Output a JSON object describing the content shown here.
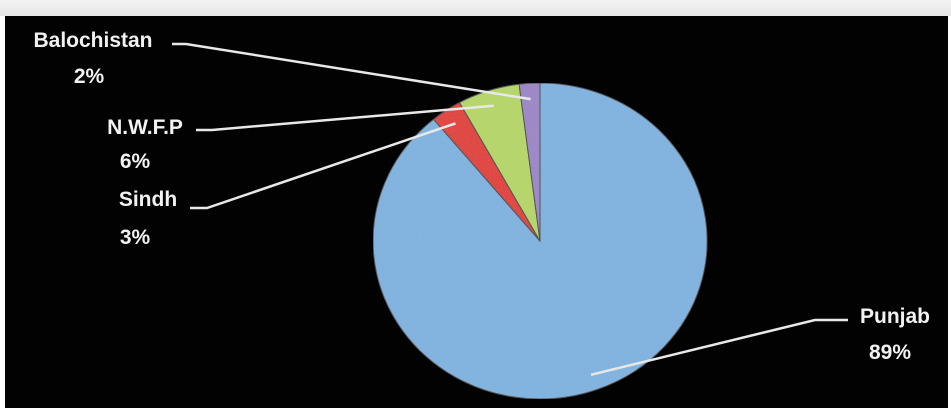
{
  "chart_data": {
    "type": "pie",
    "title": "",
    "slices": [
      {
        "label": "Punjab",
        "value": 89,
        "pct_label": "89%",
        "color": "#7fb3e1"
      },
      {
        "label": "Sindh",
        "value": 3,
        "pct_label": "3%",
        "color": "#e23a36"
      },
      {
        "label": "N.W.F.P",
        "value": 6,
        "pct_label": "6%",
        "color": "#b6d766"
      },
      {
        "label": "Balochistan",
        "value": 2,
        "pct_label": "2%",
        "color": "#9c86c8"
      }
    ],
    "background": "#020202",
    "leader_line_color": "#e8e8e8"
  }
}
